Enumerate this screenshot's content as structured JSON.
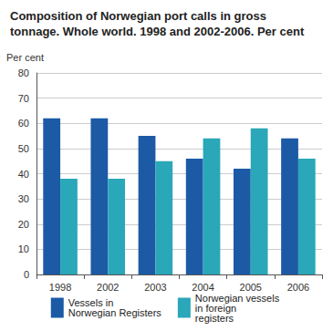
{
  "chart_data": {
    "type": "bar",
    "title": "Composition of Norwegian port calls in gross tonnage. Whole world. 1998 and 2002-2006. Per cent",
    "y_label": "Per cent",
    "categories": [
      "1998",
      "2002",
      "2003",
      "2004",
      "2005",
      "2006"
    ],
    "series": [
      {
        "name": "Vessels in Norwegian Registers",
        "color": "#1c5aa6",
        "values": [
          62,
          62,
          55,
          46,
          42,
          54
        ]
      },
      {
        "name": "Norwegian vessels in foreign registers",
        "color": "#2aa7b8",
        "values": [
          38,
          38,
          45,
          54,
          58,
          46
        ]
      }
    ],
    "ylim": [
      0,
      80
    ],
    "yticks": [
      0,
      10,
      20,
      30,
      40,
      50,
      60,
      70,
      80
    ],
    "grid": true,
    "legend": "bottom"
  }
}
